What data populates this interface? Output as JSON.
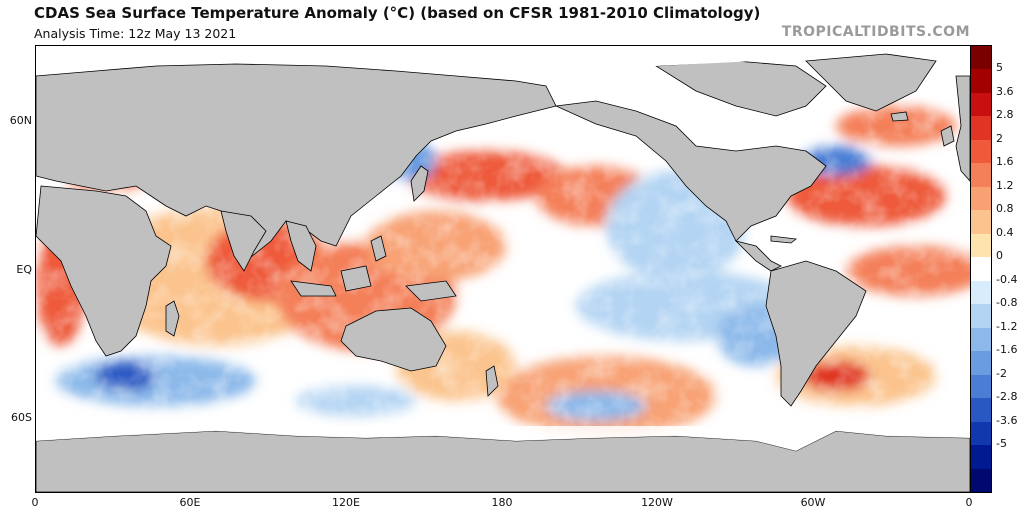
{
  "header": {
    "title": "CDAS Sea Surface Temperature Anomaly (°C) (based on CFSR 1981-2010 Climatology)",
    "subtitle": "Analysis Time: 12z May 13 2021",
    "credit": "TROPICALTIDBITS.COM"
  },
  "map": {
    "lat_labels": [
      "60N",
      "EQ",
      "60S"
    ],
    "lon_labels": [
      "0",
      "60E",
      "120E",
      "180",
      "120W",
      "60W",
      "0"
    ]
  },
  "colorbar": {
    "labels": [
      "5",
      "3.6",
      "2.8",
      "2",
      "1.6",
      "1.2",
      "0.8",
      "0.4",
      "0",
      "-0.4",
      "-0.8",
      "-1.2",
      "-1.6",
      "-2",
      "-2.8",
      "-3.6",
      "-5"
    ],
    "colors": [
      "#7a0000",
      "#a30000",
      "#c81010",
      "#e03424",
      "#ee5a3a",
      "#f4805a",
      "#f8a274",
      "#fbc48e",
      "#fde3ad",
      "#ffffff",
      "#d9ecfb",
      "#b3d4f3",
      "#8cb9ea",
      "#6a9ce0",
      "#4a7dd4",
      "#2a58c3",
      "#1238ae",
      "#001a92",
      "#000a6e"
    ]
  }
}
